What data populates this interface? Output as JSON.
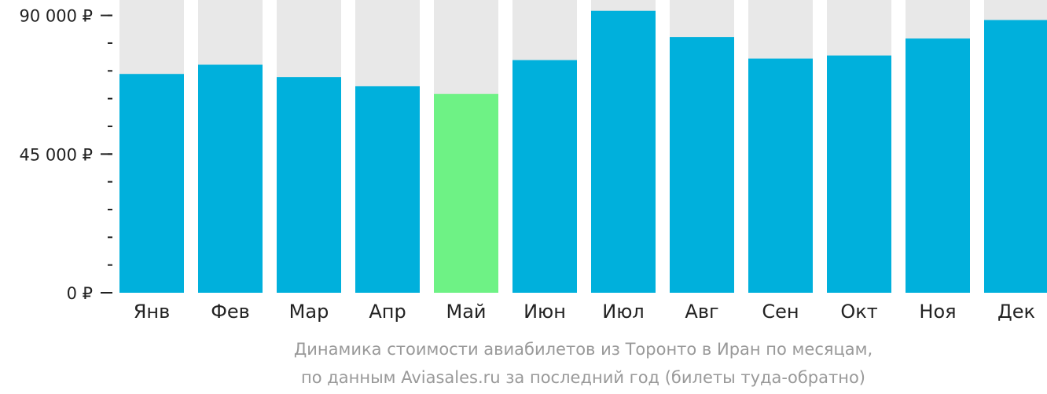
{
  "chart_data": {
    "type": "bar",
    "categories": [
      "Янв",
      "Фев",
      "Мар",
      "Апр",
      "Май",
      "Июн",
      "Июл",
      "Авг",
      "Сен",
      "Окт",
      "Ноя",
      "Дек"
    ],
    "values": [
      71000,
      74000,
      70000,
      67000,
      64500,
      75500,
      91500,
      83000,
      76000,
      77000,
      82500,
      88500
    ],
    "highlight_category": "Май",
    "ylim": [
      0,
      95000
    ],
    "y_ticks": [
      {
        "value": 0,
        "label": "0 ₽"
      },
      {
        "value": 45000,
        "label": "45 000 ₽"
      },
      {
        "value": 90000,
        "label": "90 000 ₽"
      }
    ],
    "y_minor_step": 9000,
    "colors": {
      "bar": "#00b0dc",
      "highlight": "#6ef285",
      "background_bar": "#e8e8e8",
      "axis": "#222222"
    },
    "caption": [
      "Динамика стоимости авиабилетов из Торонто в Иран по месяцам,",
      "по данным Aviasales.ru за последний год (билеты туда-обратно)"
    ]
  }
}
